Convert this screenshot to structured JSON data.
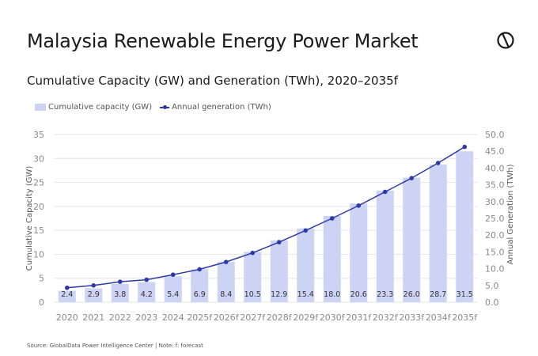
{
  "header": {
    "title": "Malaysia Renewable Energy Power Market",
    "subtitle": "Cumulative Capacity (GW) and Generation (TWh), 2020–2035f",
    "logo_icon": "globaldata-logo-icon"
  },
  "footer": {
    "source": "Source: GlobalData Power Intelligence Center | Note: f: forecast"
  },
  "colors": {
    "bar": "#ccd3f5",
    "line": "#2d39a6",
    "grid": "#e6e6e6",
    "axis_text": "#8a8a8a"
  },
  "chart_data": {
    "type": "bar",
    "categories": [
      "2020",
      "2021",
      "2022",
      "2023",
      "2024",
      "2025f",
      "2026f",
      "2027f",
      "2028f",
      "2029f",
      "2030f",
      "2031f",
      "2032f",
      "2033f",
      "2034f",
      "2035f"
    ],
    "series": [
      {
        "name": "Cumulative capacity (GW)",
        "type": "bar",
        "axis": "left",
        "values": [
          2.4,
          2.9,
          3.8,
          4.2,
          5.4,
          6.9,
          8.4,
          10.5,
          12.9,
          15.4,
          18.0,
          20.6,
          23.3,
          26.0,
          28.7,
          31.5
        ],
        "labels": [
          "2.4",
          "2.9",
          "3.8",
          "4.2",
          "5.4",
          "6.9",
          "8.4",
          "10.5",
          "12.9",
          "15.4",
          "18.0",
          "20.6",
          "23.3",
          "26.0",
          "28.7",
          "31.5"
        ]
      },
      {
        "name": "Annual generation (TWh)",
        "type": "line",
        "axis": "right",
        "values": [
          4.3,
          5.0,
          6.1,
          6.7,
          8.2,
          9.8,
          12.0,
          14.7,
          17.9,
          21.4,
          25.0,
          28.8,
          32.9,
          37.0,
          41.5,
          46.3
        ]
      }
    ],
    "ylabel": "Cumulative Capacity (GW)",
    "y2label": "Annual Generation (TWh)",
    "ylim": [
      0,
      35
    ],
    "yticks": [
      0,
      5,
      10,
      15,
      20,
      25,
      30,
      35
    ],
    "y2lim": [
      0,
      50
    ],
    "y2ticks": [
      "0.0",
      "5.0",
      "10.0",
      "15.0",
      "20.0",
      "25.0",
      "30.0",
      "35.0",
      "40.0",
      "45.0",
      "50.0"
    ],
    "grid": true,
    "legend_position": "top-left"
  }
}
